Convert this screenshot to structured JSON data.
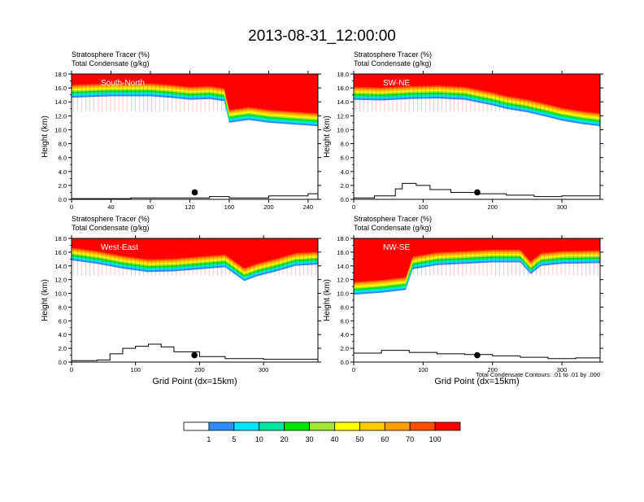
{
  "figure": {
    "title": "2013-08-31_12:00:00",
    "footnote": "Total Condensate Contours: .01 to .01 by .000"
  },
  "colorbar": {
    "colors": [
      "#ffffff",
      "#2e8cff",
      "#00e6ff",
      "#00e6a0",
      "#00e600",
      "#a0e632",
      "#ffff00",
      "#ffcc00",
      "#ffa000",
      "#ff5000",
      "#ff0000"
    ],
    "labels": [
      "1",
      "5",
      "10",
      "20",
      "30",
      "40",
      "50",
      "60",
      "70",
      "100"
    ]
  },
  "chart_data": [
    {
      "type": "heatmap",
      "label": "South-North",
      "title": "Stratosphere Tracer   (%)",
      "subtitle": "Total Condensate   (g/kg)",
      "xlabel": "",
      "ylabel": "Height (km)",
      "xlim": [
        0,
        250
      ],
      "ylim": [
        0,
        18
      ],
      "xticks": [
        "0",
        "40",
        "80",
        "120",
        "160",
        "200",
        "240"
      ],
      "xtick_values": [
        0,
        40,
        80,
        120,
        160,
        200,
        240
      ],
      "yticks": [
        "0.0",
        "2.0",
        "4.0",
        "6.0",
        "8.0",
        "10.0",
        "12.0",
        "14.0",
        "16.0",
        "18.0"
      ],
      "marker": {
        "x": 125,
        "y": 1.0
      },
      "tropopause_km": [
        [
          0,
          14.6
        ],
        [
          20,
          14.7
        ],
        [
          40,
          14.8
        ],
        [
          60,
          14.8
        ],
        [
          80,
          14.8
        ],
        [
          100,
          14.6
        ],
        [
          120,
          14.3
        ],
        [
          140,
          14.4
        ],
        [
          155,
          14.1
        ],
        [
          160,
          11.0
        ],
        [
          170,
          11.2
        ],
        [
          180,
          11.4
        ],
        [
          200,
          11.0
        ],
        [
          220,
          10.8
        ],
        [
          240,
          10.6
        ],
        [
          250,
          10.5
        ]
      ],
      "terrain_km": [
        [
          0,
          0.1
        ],
        [
          20,
          0.1
        ],
        [
          60,
          0.2
        ],
        [
          100,
          0.2
        ],
        [
          140,
          0.4
        ],
        [
          160,
          0.2
        ],
        [
          200,
          0.5
        ],
        [
          240,
          0.8
        ],
        [
          250,
          0.9
        ]
      ]
    },
    {
      "type": "heatmap",
      "label": "SW-NE",
      "title": "Stratosphere Tracer   (%)",
      "subtitle": "Total Condensate   (g/kg)",
      "xlabel": "",
      "ylabel": "Height (km)",
      "xlim": [
        0,
        355
      ],
      "ylim": [
        0,
        18
      ],
      "xticks": [
        "0",
        "100",
        "200",
        "300"
      ],
      "xtick_values": [
        0,
        100,
        200,
        300
      ],
      "yticks": [
        "0.0",
        "2.0",
        "4.0",
        "6.0",
        "8.0",
        "10.0",
        "12.0",
        "14.0",
        "16.0",
        "18.0"
      ],
      "marker": {
        "x": 178,
        "y": 1.0
      },
      "tropopause_km": [
        [
          0,
          14.3
        ],
        [
          40,
          14.2
        ],
        [
          80,
          14.4
        ],
        [
          120,
          14.5
        ],
        [
          160,
          14.3
        ],
        [
          200,
          13.5
        ],
        [
          220,
          13.0
        ],
        [
          250,
          12.5
        ],
        [
          280,
          11.8
        ],
        [
          300,
          11.3
        ],
        [
          330,
          10.8
        ],
        [
          355,
          10.5
        ]
      ],
      "terrain_km": [
        [
          0,
          0.2
        ],
        [
          30,
          0.5
        ],
        [
          60,
          1.5
        ],
        [
          70,
          2.3
        ],
        [
          90,
          2.0
        ],
        [
          110,
          1.4
        ],
        [
          140,
          1.0
        ],
        [
          180,
          0.8
        ],
        [
          220,
          0.6
        ],
        [
          260,
          0.4
        ],
        [
          300,
          0.5
        ],
        [
          355,
          0.8
        ]
      ]
    },
    {
      "type": "heatmap",
      "label": "West-East",
      "title": "Stratosphere Tracer   (%)",
      "subtitle": "Total Condensate   (g/kg)",
      "xlabel": "Grid Point (dx=15km)",
      "ylabel": "Height (km)",
      "xlim": [
        0,
        385
      ],
      "ylim": [
        0,
        18
      ],
      "xticks": [
        "0",
        "100",
        "200",
        "300"
      ],
      "xtick_values": [
        0,
        100,
        200,
        300
      ],
      "yticks": [
        "0.0",
        "2.0",
        "4.0",
        "6.0",
        "8.0",
        "10.0",
        "12.0",
        "14.0",
        "16.0",
        "18.0"
      ],
      "marker": {
        "x": 192,
        "y": 1.0
      },
      "tropopause_km": [
        [
          0,
          14.8
        ],
        [
          40,
          14.3
        ],
        [
          80,
          13.6
        ],
        [
          120,
          13.1
        ],
        [
          160,
          13.2
        ],
        [
          200,
          13.5
        ],
        [
          240,
          13.8
        ],
        [
          270,
          11.8
        ],
        [
          290,
          12.5
        ],
        [
          320,
          13.2
        ],
        [
          350,
          14.0
        ],
        [
          385,
          14.2
        ]
      ],
      "terrain_km": [
        [
          0,
          0.2
        ],
        [
          40,
          0.3
        ],
        [
          60,
          1.2
        ],
        [
          80,
          2.0
        ],
        [
          100,
          2.3
        ],
        [
          120,
          2.6
        ],
        [
          140,
          2.2
        ],
        [
          160,
          1.5
        ],
        [
          200,
          0.8
        ],
        [
          240,
          0.5
        ],
        [
          300,
          0.4
        ],
        [
          385,
          0.8
        ]
      ]
    },
    {
      "type": "heatmap",
      "label": "NW-SE",
      "title": "Stratosphere Tracer   (%)",
      "subtitle": "Total Condensate   (g/kg)",
      "xlabel": "Grid Point (dx=15km)",
      "ylabel": "Height (km)",
      "xlim": [
        0,
        355
      ],
      "ylim": [
        0,
        18
      ],
      "xticks": [
        "0",
        "100",
        "200",
        "300"
      ],
      "xtick_values": [
        0,
        100,
        200,
        300
      ],
      "yticks": [
        "0.0",
        "2.0",
        "4.0",
        "6.0",
        "8.0",
        "10.0",
        "12.0",
        "14.0",
        "16.0",
        "18.0"
      ],
      "marker": {
        "x": 178,
        "y": 1.0
      },
      "tropopause_km": [
        [
          0,
          9.8
        ],
        [
          40,
          10.1
        ],
        [
          75,
          10.5
        ],
        [
          85,
          13.5
        ],
        [
          120,
          14.1
        ],
        [
          160,
          14.3
        ],
        [
          200,
          14.5
        ],
        [
          240,
          14.5
        ],
        [
          255,
          12.8
        ],
        [
          270,
          14.0
        ],
        [
          300,
          14.3
        ],
        [
          355,
          14.4
        ]
      ],
      "terrain_km": [
        [
          0,
          1.3
        ],
        [
          40,
          1.7
        ],
        [
          80,
          1.4
        ],
        [
          120,
          1.2
        ],
        [
          160,
          1.1
        ],
        [
          200,
          0.9
        ],
        [
          240,
          0.7
        ],
        [
          280,
          0.5
        ],
        [
          320,
          0.6
        ],
        [
          355,
          0.5
        ]
      ]
    }
  ]
}
